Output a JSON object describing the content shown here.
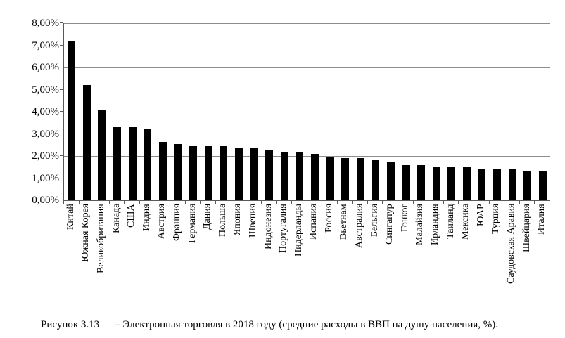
{
  "figure": {
    "caption": {
      "label": "Рисунок 3.13",
      "text": "– Электронная торговля в 2018 году (средние расходы в ВВП на душу населения, %)."
    }
  },
  "chart_data": {
    "type": "bar",
    "title": "",
    "xlabel": "",
    "ylabel": "",
    "categories": [
      "Китай",
      "Южная Корея",
      "Великобритания",
      "Канада",
      "США",
      "Индия",
      "Австрия",
      "Франция",
      "Германия",
      "Дания",
      "Польша",
      "Япония",
      "Швеция",
      "Индонезия",
      "Португалия",
      "Нидерланды",
      "Испания",
      "Россия",
      "Вьетнам",
      "Австралия",
      "Бельгия",
      "Сингапур",
      "Гонког",
      "Малайзия",
      "Ирландия",
      "Таиланд",
      "Мексика",
      "ЮАР",
      "Турция",
      "Саудовская Аравия",
      "Швейцария",
      "Италия"
    ],
    "values": [
      7.2,
      5.2,
      4.1,
      3.3,
      3.3,
      3.2,
      2.65,
      2.55,
      2.45,
      2.45,
      2.45,
      2.35,
      2.35,
      2.25,
      2.2,
      2.15,
      2.1,
      1.95,
      1.9,
      1.9,
      1.8,
      1.7,
      1.6,
      1.6,
      1.5,
      1.5,
      1.5,
      1.4,
      1.4,
      1.4,
      1.3,
      1.3
    ],
    "y_tick_labels": [
      "0,00%",
      "1,00%",
      "2,00%",
      "3,00%",
      "4,00%",
      "5,00%",
      "6,00%",
      "7,00%",
      "8,00%"
    ],
    "ylim": [
      0,
      8
    ],
    "y_tick_step": 1,
    "y_grid_step": 2,
    "grid": true,
    "legend_position": "none",
    "bar_color": "#000000",
    "grid_color": "#8c8c8c",
    "axis_color": "#595959",
    "background_color": "#ffffff"
  }
}
